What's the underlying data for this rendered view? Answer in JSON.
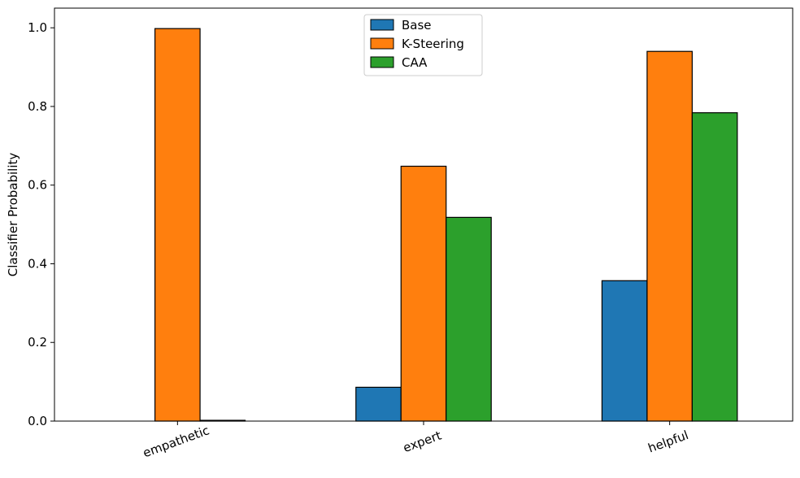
{
  "chart_data": {
    "type": "bar",
    "title": "",
    "xlabel": "",
    "ylabel": "Classifier Probability",
    "categories": [
      "empathetic",
      "expert",
      "helpful"
    ],
    "series": [
      {
        "name": "Base",
        "color": "#1f77b4",
        "values": [
          0.0,
          0.086,
          0.357
        ]
      },
      {
        "name": "K-Steering",
        "color": "#ff7f0e",
        "values": [
          0.998,
          0.648,
          0.94
        ]
      },
      {
        "name": "CAA",
        "color": "#2ca02c",
        "values": [
          0.002,
          0.518,
          0.784
        ]
      }
    ],
    "ylim": [
      0,
      1.05
    ],
    "yticks": [
      "0.0",
      "0.2",
      "0.4",
      "0.6",
      "0.8",
      "1.0"
    ],
    "grid": false,
    "legend": "upper-center",
    "x_tick_rotation_deg": -20
  }
}
